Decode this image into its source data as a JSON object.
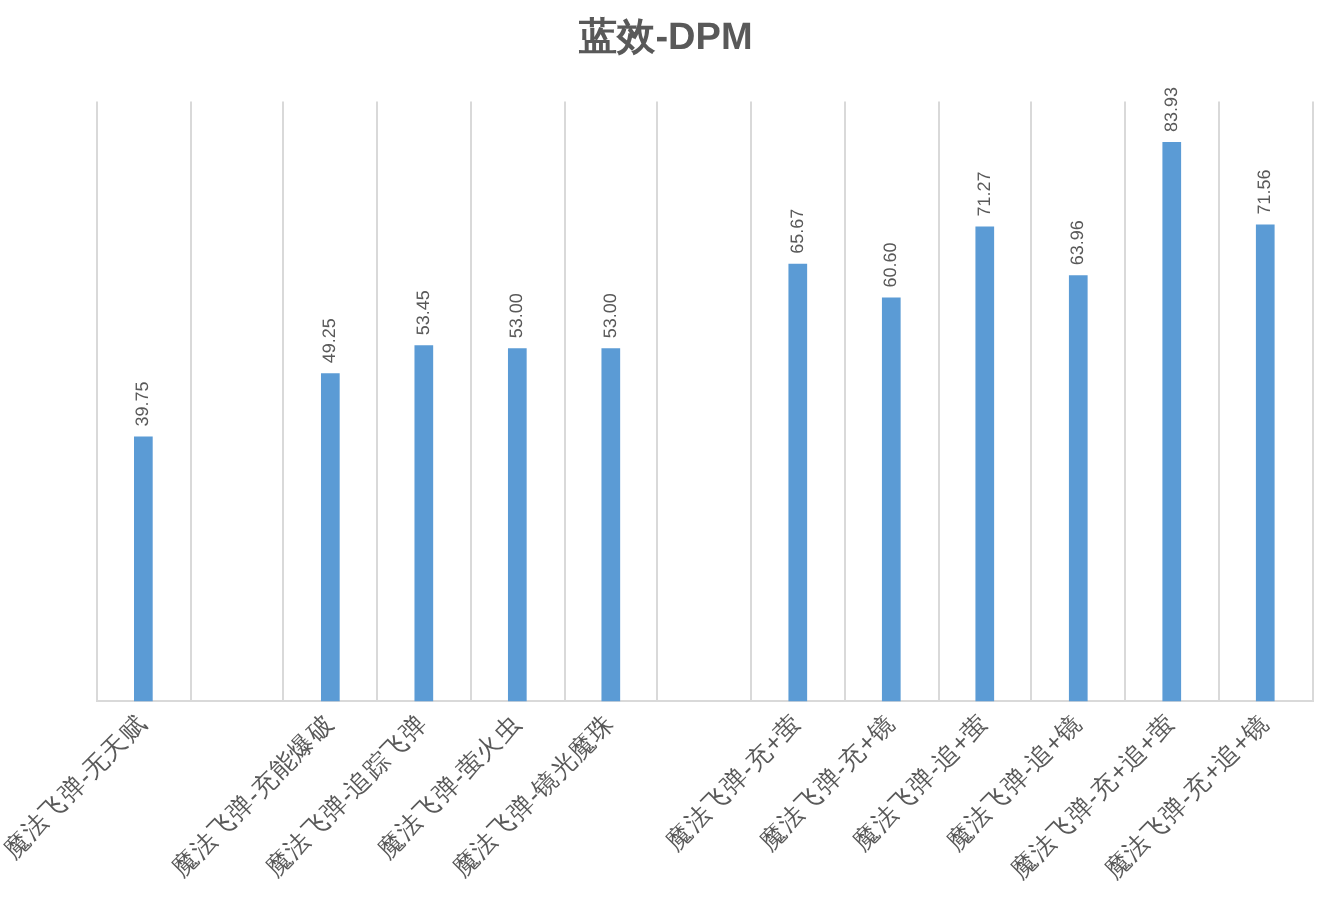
{
  "chart_data": {
    "type": "bar",
    "title": "蓝效-DPM",
    "categories": [
      "魔法飞弹-无天赋",
      null,
      "魔法飞弹-充能爆破",
      "魔法飞弹-追踪飞弹",
      "魔法飞弹-萤火虫",
      "魔法飞弹-镜光魔珠",
      null,
      "魔法飞弹-充+萤",
      "魔法飞弹-充+镜",
      "魔法飞弹-追+萤",
      "魔法飞弹-追+镜",
      "魔法飞弹-充+追+萤",
      "魔法飞弹-充+追+镜"
    ],
    "values": [
      39.75,
      null,
      49.25,
      53.45,
      53.0,
      53.0,
      null,
      65.67,
      60.6,
      71.27,
      63.96,
      83.93,
      71.56
    ],
    "value_labels": [
      "39.75",
      null,
      "49.25",
      "53.45",
      "53.00",
      "53.00",
      null,
      "65.67",
      "60.60",
      "71.27",
      "63.96",
      "83.93",
      "71.56"
    ],
    "color": "#5b9bd5",
    "ylim": [
      0,
      90
    ],
    "grid": "x",
    "tick_labels": "x"
  }
}
